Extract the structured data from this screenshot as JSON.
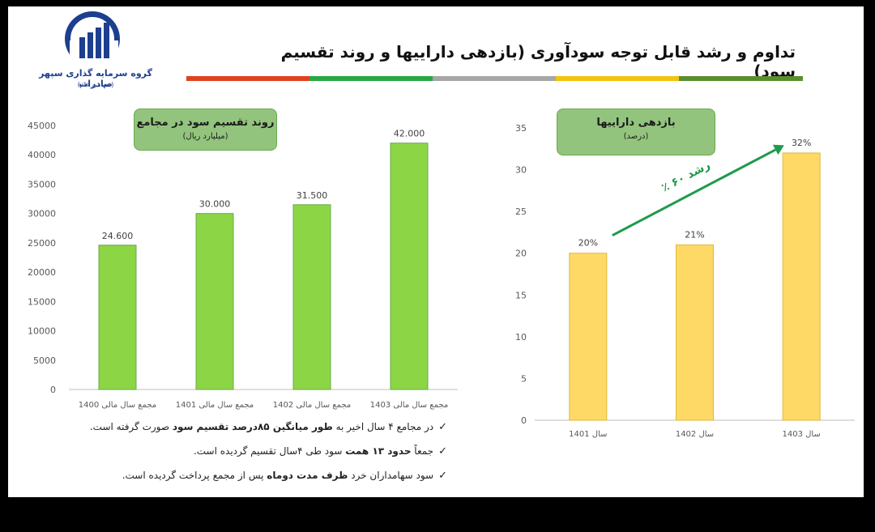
{
  "header": {
    "title": "تداوم و رشد قابل توجه سودآوری (بازدهی داراییها و روند تقسیم سود)",
    "logo_name": "گروه سرمایه گذاری سپهر صادرات",
    "logo_sub": "(سهامی عام)",
    "bar_colors": [
      "#e0411f",
      "#27a844",
      "#a6a6a6",
      "#f1c40f",
      "#5b8f2e"
    ]
  },
  "chart_data": [
    {
      "type": "bar",
      "title": "روند تقسیم سود در مجامع",
      "subtitle": "(میلیارد ریال)",
      "categories": [
        "مجمع سال مالی 1400",
        "مجمع سال مالی 1401",
        "مجمع سال مالی 1402",
        "مجمع سال مالی 1403"
      ],
      "values": [
        24600,
        30000,
        31500,
        42000
      ],
      "data_labels": [
        "24.600",
        "30.000",
        "31.500",
        "42.000"
      ],
      "yticks": [
        "0",
        "5000",
        "10000",
        "15000",
        "20000",
        "25000",
        "30000",
        "35000",
        "40000",
        "45000"
      ],
      "ylim": [
        0,
        45000
      ],
      "grid": false,
      "bar_color": "#8cd645"
    },
    {
      "type": "bar",
      "title": "بازدهی داراییها",
      "subtitle": "(درصد)",
      "categories": [
        "سال 1401",
        "سال 1402",
        "سال 1403"
      ],
      "values": [
        20,
        21,
        32
      ],
      "data_labels": [
        "20%",
        "21%",
        "32%"
      ],
      "yticks": [
        "0",
        "5",
        "10",
        "15",
        "20",
        "25",
        "30",
        "35"
      ],
      "ylim": [
        0,
        35
      ],
      "grid": false,
      "bar_color": "#ffd966",
      "annotation": "رشد ۶۰ ٪"
    }
  ],
  "bullets": [
    {
      "check": "✓",
      "parts": [
        {
          "t": "در مجامع ۴ سال اخیر به "
        },
        {
          "t": "طور میانگین ۸۵درصد تقسیم سود",
          "b": true
        },
        {
          "t": " صورت گرفته است."
        }
      ]
    },
    {
      "check": "✓",
      "parts": [
        {
          "t": "جمعاً "
        },
        {
          "t": "حدود ۱۳ همت",
          "b": true
        },
        {
          "t": " سود طی ۴سال تقسیم گردیده است."
        }
      ]
    },
    {
      "check": "✓",
      "parts": [
        {
          "t": "سود سهامداران خرد "
        },
        {
          "t": "ظرف مدت دوماه",
          "b": true
        },
        {
          "t": " پس از مجمع پرداخت گردیده است."
        }
      ]
    }
  ]
}
